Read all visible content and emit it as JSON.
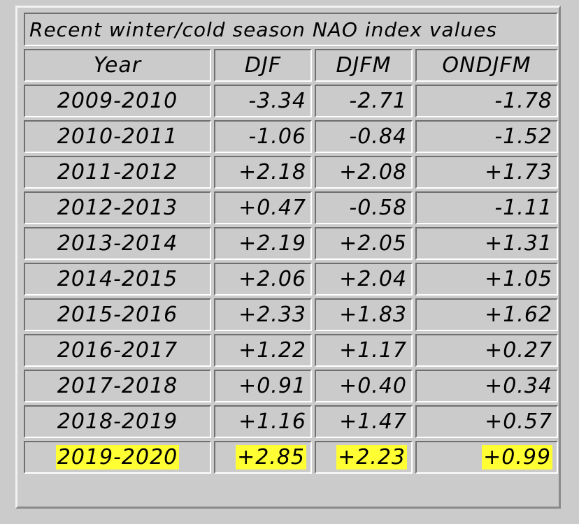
{
  "chart_data": {
    "type": "table",
    "title": "Recent winter/cold season NAO index values",
    "columns": [
      "Year",
      "DJF",
      "DJFM",
      "ONDJFM"
    ],
    "rows": [
      {
        "year": "2009-2010",
        "djf": "-3.34",
        "djfm": "-2.71",
        "ondjfm": "-1.78"
      },
      {
        "year": "2010-2011",
        "djf": "-1.06",
        "djfm": "-0.84",
        "ondjfm": "-1.52"
      },
      {
        "year": "2011-2012",
        "djf": "+2.18",
        "djfm": "+2.08",
        "ondjfm": "+1.73"
      },
      {
        "year": "2012-2013",
        "djf": "+0.47",
        "djfm": "-0.58",
        "ondjfm": "-1.11"
      },
      {
        "year": "2013-2014",
        "djf": "+2.19",
        "djfm": "+2.05",
        "ondjfm": "+1.31"
      },
      {
        "year": "2014-2015",
        "djf": "+2.06",
        "djfm": "+2.04",
        "ondjfm": "+1.05"
      },
      {
        "year": "2015-2016",
        "djf": "+2.33",
        "djfm": "+1.83",
        "ondjfm": "+1.62"
      },
      {
        "year": "2016-2017",
        "djf": "+1.22",
        "djfm": "+1.17",
        "ondjfm": "+0.27"
      },
      {
        "year": "2017-2018",
        "djf": "+0.91",
        "djfm": "+0.40",
        "ondjfm": "+0.34"
      },
      {
        "year": "2018-2019",
        "djf": "+1.16",
        "djfm": "+1.47",
        "ondjfm": "+0.57"
      },
      {
        "year": "2019-2020",
        "djf": "+2.85",
        "djfm": "+2.23",
        "ondjfm": "+0.99",
        "highlighted": true
      }
    ],
    "highlight_color": "#ffff33"
  }
}
